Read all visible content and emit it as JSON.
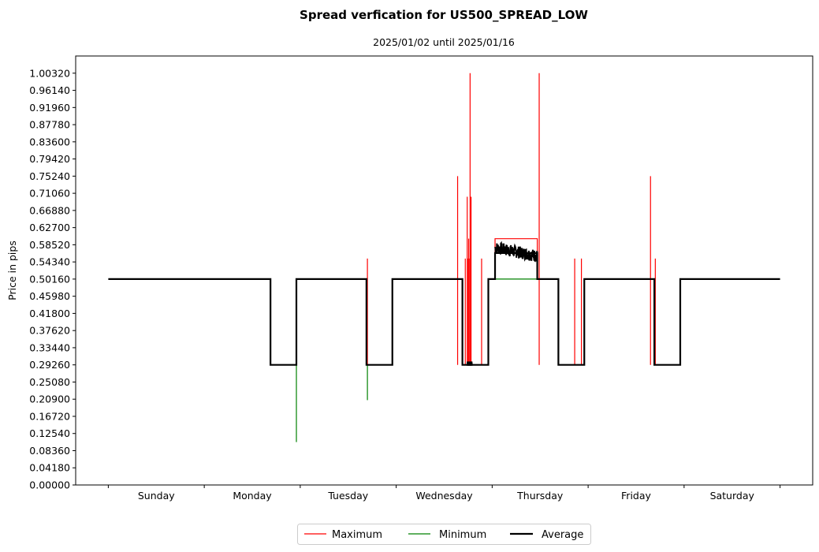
{
  "chart_data": {
    "type": "line",
    "title": "Spread verfication for US500_SPREAD_LOW",
    "subtitle": "2025/01/02 until 2025/01/16",
    "ylabel": "Price in pips",
    "xlabel": "",
    "ylim": [
      0,
      1.0451
    ],
    "xlim": [
      -0.34,
      7.34
    ],
    "yticks": [
      "0.00000",
      "0.04180",
      "0.08360",
      "0.12540",
      "0.16720",
      "0.20900",
      "0.25080",
      "0.29260",
      "0.33440",
      "0.37620",
      "0.41800",
      "0.45980",
      "0.50160",
      "0.54340",
      "0.58520",
      "0.62700",
      "0.66880",
      "0.71060",
      "0.75240",
      "0.79420",
      "0.83600",
      "0.87780",
      "0.91960",
      "0.96140",
      "1.00320"
    ],
    "xtick_positions": [
      0,
      1,
      2,
      3,
      4,
      5,
      6,
      7
    ],
    "day_labels": [
      {
        "label": "Sunday",
        "x": 0.5
      },
      {
        "label": "Monday",
        "x": 1.5
      },
      {
        "label": "Tuesday",
        "x": 2.5
      },
      {
        "label": "Wednesday",
        "x": 3.5
      },
      {
        "label": "Thursday",
        "x": 4.5
      },
      {
        "label": "Friday",
        "x": 5.5
      },
      {
        "label": "Saturday",
        "x": 6.5
      }
    ],
    "legend": [
      "Maximum",
      "Minimum",
      "Average"
    ],
    "colors": {
      "maximum": "#ff0000",
      "minimum": "#008000",
      "average": "#000000"
    },
    "base_levels": {
      "high": 0.5016,
      "low": 0.2926,
      "mid": 0.6,
      "mid_min": 0.5016
    },
    "avg_steps": [
      [
        0.0,
        0.5016
      ],
      [
        1.69,
        0.5016
      ],
      [
        1.69,
        0.2926
      ],
      [
        1.96,
        0.2926
      ],
      [
        1.96,
        0.5016
      ],
      [
        2.69,
        0.5016
      ],
      [
        2.69,
        0.2926
      ],
      [
        2.96,
        0.2926
      ],
      [
        2.96,
        0.5016
      ],
      [
        3.69,
        0.5016
      ],
      [
        3.69,
        0.2926
      ],
      [
        3.96,
        0.2926
      ],
      [
        3.96,
        0.5016
      ],
      [
        4.03,
        0.5016
      ],
      [
        4.03,
        0.565
      ],
      [
        4.47,
        0.565
      ],
      [
        4.47,
        0.5016
      ],
      [
        4.69,
        0.5016
      ],
      [
        4.69,
        0.2926
      ],
      [
        4.96,
        0.2926
      ],
      [
        4.96,
        0.5016
      ],
      [
        5.69,
        0.5016
      ],
      [
        5.69,
        0.2926
      ],
      [
        5.96,
        0.2926
      ],
      [
        5.96,
        0.5016
      ],
      [
        7.0,
        0.5016
      ]
    ],
    "avg_noise_range": [
      4.03,
      4.47
    ],
    "max_extra_steps": [
      [
        4.03,
        0.5016
      ],
      [
        4.03,
        0.6
      ],
      [
        4.47,
        0.6
      ],
      [
        4.47,
        0.5016
      ]
    ],
    "max_spikes": [
      {
        "x": 2.7,
        "y": 0.5517
      },
      {
        "x": 3.64,
        "y": 0.7524
      },
      {
        "x": 3.72,
        "y": 0.5517
      },
      {
        "x": 3.74,
        "y": 0.7022
      },
      {
        "x": 3.75,
        "y": 0.5517
      },
      {
        "x": 3.755,
        "y": 0.6
      },
      {
        "x": 3.76,
        "y": 0.5517
      },
      {
        "x": 3.77,
        "y": 1.0032
      },
      {
        "x": 3.78,
        "y": 0.7022
      },
      {
        "x": 3.89,
        "y": 0.5517
      },
      {
        "x": 4.49,
        "y": 1.0032
      },
      {
        "x": 4.86,
        "y": 0.5517
      },
      {
        "x": 4.93,
        "y": 0.5517
      },
      {
        "x": 5.65,
        "y": 0.7524
      },
      {
        "x": 5.7,
        "y": 0.5517
      }
    ],
    "min_spikes": [
      {
        "x": 1.96,
        "y": 0.1045
      },
      {
        "x": 2.7,
        "y": 0.2067
      }
    ]
  }
}
